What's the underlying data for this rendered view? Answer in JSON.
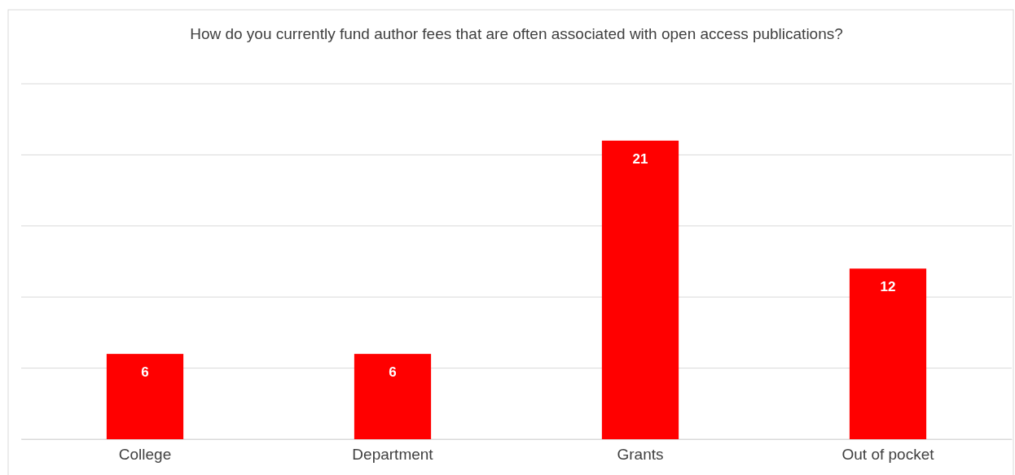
{
  "chart_data": {
    "type": "bar",
    "title": "How do you currently fund author fees that are often associated with open access publications?",
    "categories": [
      "College",
      "Department",
      "Grants",
      "Out of pocket"
    ],
    "values": [
      6,
      6,
      21,
      12
    ],
    "color": "#ff0000",
    "data_labels": true,
    "ylim": [
      0,
      25
    ],
    "yticks": [
      {
        "value": 0,
        "label": null
      },
      {
        "value": 5,
        "label": null
      },
      {
        "value": 10,
        "label": null
      },
      {
        "value": 15,
        "label": null
      },
      {
        "value": 20,
        "label": null
      },
      {
        "value": 25,
        "label": null
      }
    ],
    "grid": "y",
    "tick_labels": "x"
  }
}
